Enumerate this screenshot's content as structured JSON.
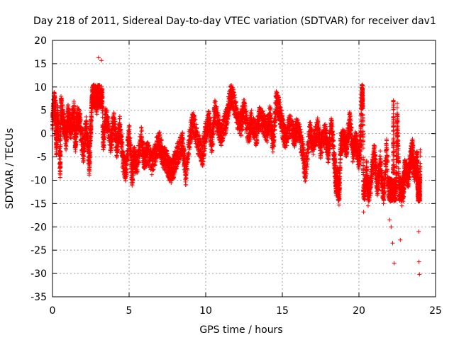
{
  "chart_data": {
    "type": "scatter",
    "title": "Day 218 of 2011, Sidereal Day-to-day VTEC variation (SDTVAR) for receiver dav1",
    "xlabel": "GPS time / hours",
    "ylabel": "SDTVAR / TECUs",
    "xlim": [
      0,
      25
    ],
    "ylim": [
      -35,
      20
    ],
    "x_ticks": [
      0,
      5,
      10,
      15,
      20,
      25
    ],
    "y_ticks": [
      -35,
      -30,
      -25,
      -20,
      -15,
      -10,
      -5,
      0,
      5,
      10,
      15,
      20
    ],
    "grid": true,
    "marker": "+",
    "color": "#ff0000",
    "series": [
      {
        "name": "dav1",
        "points": [
          [
            0.0,
            2.0
          ],
          [
            0.1,
            7.0
          ],
          [
            0.2,
            5.0
          ],
          [
            0.25,
            -3.0
          ],
          [
            0.35,
            4.5
          ],
          [
            0.5,
            -8.5
          ],
          [
            0.55,
            6.0
          ],
          [
            0.7,
            3.0
          ],
          [
            0.9,
            -1.5
          ],
          [
            1.0,
            4.0
          ],
          [
            1.2,
            1.0
          ],
          [
            1.4,
            4.5
          ],
          [
            1.5,
            -2.5
          ],
          [
            1.6,
            3.5
          ],
          [
            1.8,
            2.5
          ],
          [
            2.0,
            -4.0
          ],
          [
            2.2,
            1.5
          ],
          [
            2.4,
            -6.5
          ],
          [
            2.5,
            1.0
          ],
          [
            2.6,
            9.0
          ],
          [
            2.7,
            10.5
          ],
          [
            2.8,
            8.5
          ],
          [
            2.9,
            6.5
          ],
          [
            3.0,
            16.3
          ],
          [
            3.2,
            15.7
          ],
          [
            3.3,
            -2.0
          ],
          [
            3.5,
            4.0
          ],
          [
            3.8,
            -2.5
          ],
          [
            4.0,
            2.5
          ],
          [
            4.2,
            -3.0
          ],
          [
            4.4,
            1.5
          ],
          [
            4.6,
            -6.0
          ],
          [
            4.8,
            -8.0
          ],
          [
            5.0,
            0.5
          ],
          [
            5.2,
            -9.2
          ],
          [
            5.3,
            -5.0
          ],
          [
            5.5,
            -6.5
          ],
          [
            5.8,
            -1.0
          ],
          [
            6.0,
            -6.0
          ],
          [
            6.2,
            -4.0
          ],
          [
            6.5,
            -6.5
          ],
          [
            6.8,
            -3.0
          ],
          [
            7.0,
            -2.0
          ],
          [
            7.2,
            -5.0
          ],
          [
            7.4,
            -5.5
          ],
          [
            7.6,
            -7.5
          ],
          [
            7.8,
            -8.3
          ],
          [
            8.0,
            -6.0
          ],
          [
            8.2,
            -4.0
          ],
          [
            8.5,
            -2.0
          ],
          [
            8.7,
            -9.0
          ],
          [
            9.0,
            0.5
          ],
          [
            9.2,
            2.5
          ],
          [
            9.5,
            -2.0
          ],
          [
            9.8,
            -4.5
          ],
          [
            10.0,
            0.0
          ],
          [
            10.2,
            3.0
          ],
          [
            10.4,
            -2.5
          ],
          [
            10.6,
            5.0
          ],
          [
            10.8,
            2.0
          ],
          [
            11.0,
            -0.5
          ],
          [
            11.3,
            2.5
          ],
          [
            11.5,
            6.0
          ],
          [
            11.7,
            9.0
          ],
          [
            12.0,
            4.0
          ],
          [
            12.3,
            2.0
          ],
          [
            12.5,
            5.0
          ],
          [
            12.8,
            0.0
          ],
          [
            13.0,
            3.0
          ],
          [
            13.3,
            -0.5
          ],
          [
            13.5,
            3.5
          ],
          [
            13.8,
            2.0
          ],
          [
            14.0,
            0.5
          ],
          [
            14.2,
            4.0
          ],
          [
            14.4,
            -2.5
          ],
          [
            14.6,
            7.0
          ],
          [
            14.8,
            5.0
          ],
          [
            15.0,
            1.5
          ],
          [
            15.2,
            -1.0
          ],
          [
            15.5,
            2.0
          ],
          [
            15.8,
            -0.5
          ],
          [
            16.0,
            1.5
          ],
          [
            16.3,
            -3.0
          ],
          [
            16.5,
            -8.3
          ],
          [
            16.8,
            0.5
          ],
          [
            17.0,
            -2.5
          ],
          [
            17.3,
            1.0
          ],
          [
            17.5,
            -3.0
          ],
          [
            17.8,
            0.0
          ],
          [
            18.0,
            -4.5
          ],
          [
            18.2,
            1.5
          ],
          [
            18.4,
            -5.5
          ],
          [
            18.5,
            -11.0
          ],
          [
            18.6,
            -9.5
          ],
          [
            18.7,
            -15.3
          ],
          [
            18.8,
            -2.5
          ],
          [
            19.0,
            -1.0
          ],
          [
            19.2,
            -3.0
          ],
          [
            19.4,
            3.0
          ],
          [
            19.6,
            -4.0
          ],
          [
            19.8,
            -1.5
          ],
          [
            20.0,
            -5.5
          ],
          [
            20.1,
            -1.5
          ],
          [
            20.2,
            10.5
          ],
          [
            20.25,
            9.0
          ],
          [
            20.3,
            -16.8
          ],
          [
            20.5,
            -7.0
          ],
          [
            20.6,
            -15.5
          ],
          [
            20.8,
            -9.5
          ],
          [
            21.0,
            -4.0
          ],
          [
            21.2,
            -11.5
          ],
          [
            21.4,
            -6.0
          ],
          [
            21.6,
            -15.0
          ],
          [
            21.8,
            -3.0
          ],
          [
            22.0,
            -18.5
          ],
          [
            22.1,
            -20.0
          ],
          [
            22.2,
            -23.5
          ],
          [
            22.25,
            6.8
          ],
          [
            22.3,
            -27.8
          ],
          [
            22.4,
            -14.0
          ],
          [
            22.5,
            4.0
          ],
          [
            22.6,
            -9.5
          ],
          [
            22.7,
            -22.8
          ],
          [
            22.8,
            -15.5
          ],
          [
            22.9,
            -12.0
          ],
          [
            23.0,
            -7.5
          ],
          [
            23.2,
            -9.5
          ],
          [
            23.4,
            -5.0
          ],
          [
            23.5,
            -3.5
          ],
          [
            23.6,
            -8.5
          ],
          [
            23.8,
            -6.0
          ],
          [
            23.85,
            -13.5
          ],
          [
            23.9,
            -21.0
          ],
          [
            23.92,
            -27.5
          ],
          [
            23.95,
            -30.2
          ],
          [
            24.0,
            -3.5
          ]
        ]
      }
    ]
  }
}
